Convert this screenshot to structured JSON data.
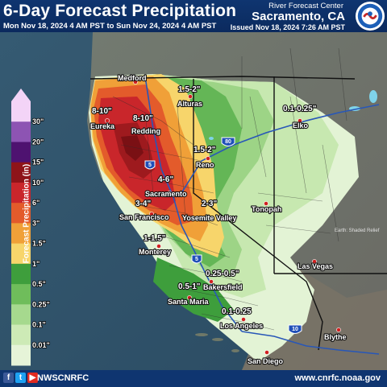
{
  "header": {
    "title": "6-Day Forecast Precipitation",
    "period": "Mon Nov 18, 2024 4 AM PST to Sun Nov 24, 2024 4 AM PST",
    "issued": "Issued Nov 18, 2024 7:26 AM PST",
    "office_name": "River Forecast Center",
    "office_city": "Sacramento, CA",
    "logo_text": "NATIONAL WEATHER SERVICE"
  },
  "legend": {
    "title": "Forecast Precipitation (in)",
    "levels": [
      "30\"",
      "20\"",
      "15\"",
      "10\"",
      "6\"",
      "3\"",
      "1.5\"",
      "1\"",
      "0.5\"",
      "0.25\"",
      "0.1\"",
      "0.01\""
    ],
    "colors": [
      "#f3d4f7",
      "#8d54b3",
      "#4e1270",
      "#8e1419",
      "#c9262b",
      "#e35b2b",
      "#f0a038",
      "#f7d56b",
      "#3e9e3c",
      "#6fbd5b",
      "#a6d98e",
      "#cdeab6",
      "#e6f4d8"
    ]
  },
  "amount_labels": [
    "8-10\"",
    "8-10\"",
    "1.5-2\"",
    "0.1-0.25\"",
    "1.5-2\"",
    "4-6\"",
    "3-4\"",
    "2-3\"",
    "1-1.5\"",
    "0.25-0.5\"",
    "0.5-1\"",
    "0.1-0.25"
  ],
  "cities": [
    "Medford",
    "Alturas",
    "Eureka",
    "Redding",
    "Elko",
    "Reno",
    "Sacramento",
    "San Francisco",
    "Yosemite Valley",
    "Tonopah",
    "Monterey",
    "Las Vegas",
    "Bakersfield",
    "Santa Maria",
    "Los Angeles",
    "Blythe",
    "San Diego"
  ],
  "highway_shields": [
    "80",
    "5",
    "5",
    "10"
  ],
  "watermark": "Earth: Shaded Relief",
  "footer": {
    "social_icons": [
      "facebook-icon",
      "twitter-icon",
      "youtube-icon"
    ],
    "handle": "NWSCNRFC",
    "website": "www.cnrfc.noaa.gov"
  }
}
